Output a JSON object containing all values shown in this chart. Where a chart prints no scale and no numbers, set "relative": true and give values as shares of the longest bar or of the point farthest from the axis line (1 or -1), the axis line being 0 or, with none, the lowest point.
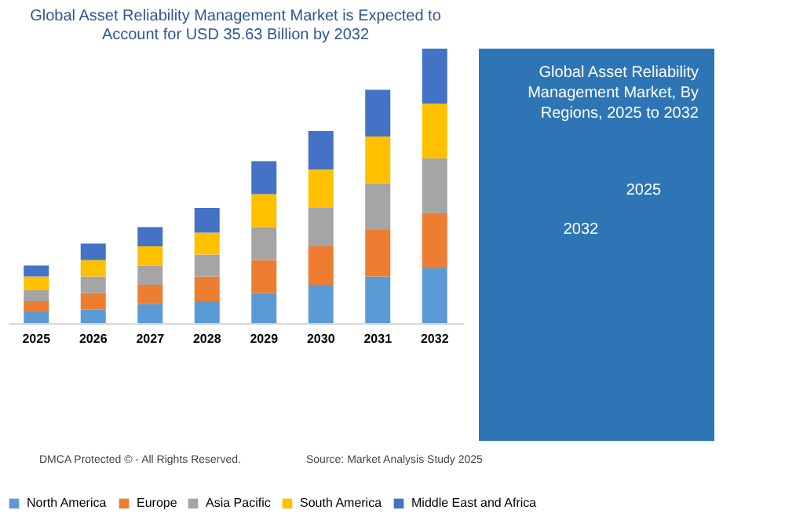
{
  "chart_data": {
    "type": "bar",
    "title": "Global Asset Reliability Management Market is Expected to Account for USD 35.63 Billion by 2032",
    "subtitle": "Global Asset Reliability Management Market, By Regions, 2025 to 2032",
    "categories": [
      "2025",
      "2026",
      "2027",
      "2028",
      "2029",
      "2030",
      "2031",
      "2032"
    ],
    "stacked": true,
    "relative": true,
    "legend": "bottom",
    "series": [
      {
        "name": "North America",
        "color": "#5b9bd5",
        "values": [
          0.04,
          0.05,
          0.07,
          0.08,
          0.11,
          0.14,
          0.17,
          0.2
        ]
      },
      {
        "name": "Europe",
        "color": "#ed7d31",
        "values": [
          0.04,
          0.06,
          0.07,
          0.09,
          0.12,
          0.14,
          0.17,
          0.2
        ]
      },
      {
        "name": "Asia Pacific",
        "color": "#a5a5a5",
        "values": [
          0.04,
          0.06,
          0.07,
          0.08,
          0.12,
          0.14,
          0.17,
          0.2
        ]
      },
      {
        "name": "South America",
        "color": "#ffc000",
        "values": [
          0.05,
          0.06,
          0.07,
          0.08,
          0.12,
          0.14,
          0.17,
          0.2
        ]
      },
      {
        "name": "Middle East and Africa",
        "color": "#4472c4",
        "values": [
          0.04,
          0.06,
          0.07,
          0.09,
          0.12,
          0.14,
          0.17,
          0.2
        ]
      }
    ],
    "annotations": [
      "2025",
      "2032",
      "DMCA Protected © - All Rights Reserved.",
      "Source: Market Analysis Study 2025"
    ]
  }
}
